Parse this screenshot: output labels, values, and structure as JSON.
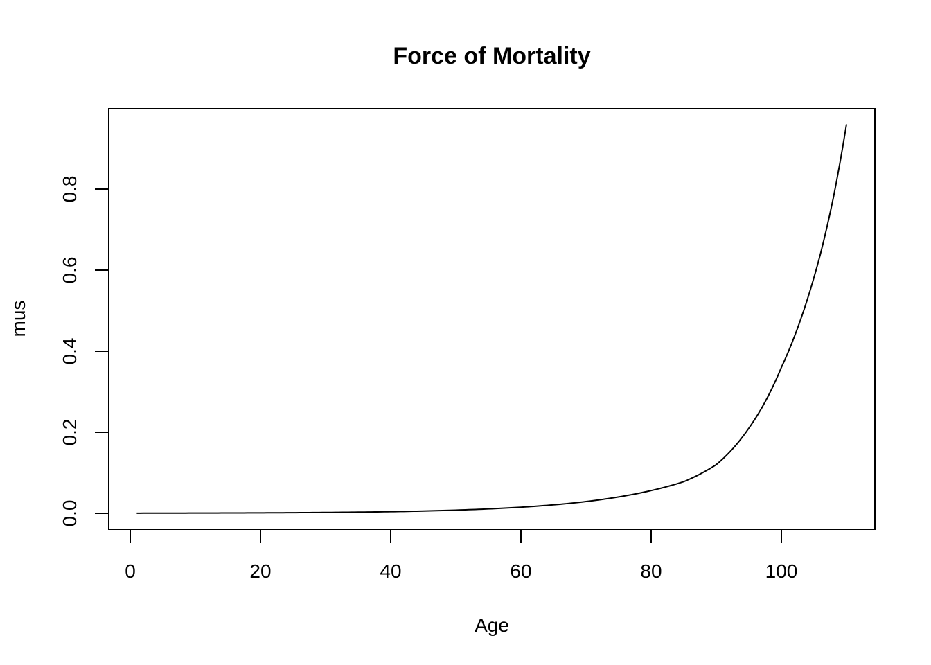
{
  "chart_data": {
    "type": "line",
    "title": "Force of Mortality",
    "xlabel": "Age",
    "ylabel": "mus",
    "xlim": [
      1,
      110
    ],
    "ylim": [
      0,
      0.96
    ],
    "x_ticks": [
      0,
      20,
      40,
      60,
      80,
      100
    ],
    "y_ticks": [
      0.0,
      0.2,
      0.4,
      0.6,
      0.8
    ],
    "x_tick_labels": [
      "0",
      "20",
      "40",
      "60",
      "80",
      "100"
    ],
    "y_tick_labels": [
      "0.0",
      "0.2",
      "0.4",
      "0.6",
      "0.8"
    ],
    "grid": false,
    "legend": "none",
    "series": [
      {
        "x": [
          1,
          10,
          20,
          30,
          40,
          50,
          55,
          60,
          65,
          70,
          75,
          80,
          85,
          90,
          95,
          100,
          103,
          106,
          108,
          110
        ],
        "values": [
          0.0003,
          0.0006,
          0.0011,
          0.0021,
          0.004,
          0.0078,
          0.0108,
          0.015,
          0.0209,
          0.029,
          0.0404,
          0.0561,
          0.078,
          0.12,
          0.21,
          0.36,
          0.48,
          0.64,
          0.78,
          0.96
        ]
      }
    ]
  }
}
